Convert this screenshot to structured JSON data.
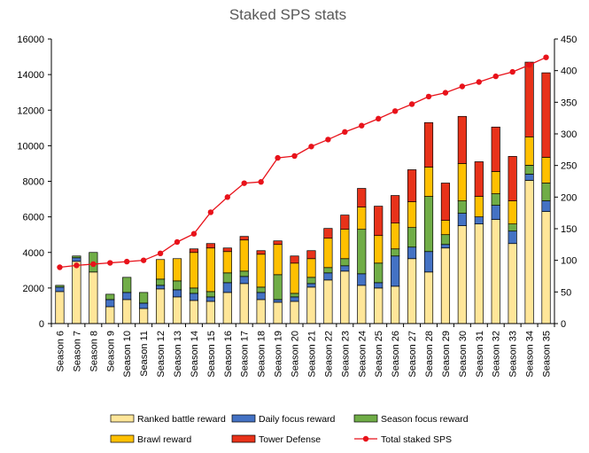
{
  "chart_data": {
    "type": "bar",
    "title": "Staked SPS stats",
    "categories": [
      "Season 6",
      "Season 7",
      "Season 8",
      "Season 9",
      "Season 10",
      "Season 11",
      "Season 12",
      "Season 13",
      "Season 14",
      "Season 15",
      "Season 16",
      "Season 17",
      "Season 18",
      "Season 19",
      "Season 20",
      "Season 21",
      "Season 22",
      "Season 23",
      "Season 24",
      "Season 25",
      "Season 26",
      "Season 27",
      "Season 28",
      "Season 29",
      "Season 30",
      "Season 31",
      "Season 32",
      "Season 33",
      "Season 34",
      "Season 35"
    ],
    "ylim": [
      0,
      16000
    ],
    "y_ticks": [
      0,
      2000,
      4000,
      6000,
      8000,
      10000,
      12000,
      14000,
      16000
    ],
    "y2lim": [
      0,
      450
    ],
    "y2_ticks": [
      0,
      50,
      100,
      150,
      200,
      250,
      300,
      350,
      400,
      450
    ],
    "grid": false,
    "legend_position": "bottom",
    "series": [
      {
        "name": "Ranked battle reward",
        "kind": "bar",
        "axis": "left",
        "color": "#FFE699",
        "values": [
          1800,
          3500,
          2900,
          950,
          1350,
          850,
          1950,
          1500,
          1300,
          1250,
          1750,
          2250,
          1350,
          1200,
          1250,
          2050,
          2450,
          2950,
          2150,
          2000,
          2100,
          3650,
          2900,
          4250,
          5500,
          5600,
          5850,
          4500,
          8050,
          6300
        ]
      },
      {
        "name": "Daily focus reward",
        "kind": "bar",
        "axis": "left",
        "color": "#4472C4",
        "values": [
          250,
          200,
          0,
          400,
          400,
          300,
          200,
          400,
          400,
          250,
          550,
          400,
          400,
          150,
          250,
          200,
          400,
          300,
          650,
          300,
          1700,
          650,
          1150,
          200,
          700,
          400,
          800,
          700,
          350,
          600
        ]
      },
      {
        "name": "Season focus reward",
        "kind": "bar",
        "axis": "left",
        "color": "#70AD47",
        "values": [
          100,
          100,
          1100,
          300,
          850,
          600,
          350,
          500,
          300,
          300,
          550,
          300,
          300,
          1400,
          200,
          350,
          300,
          400,
          2500,
          1100,
          400,
          1100,
          3100,
          550,
          700,
          0,
          650,
          400,
          500,
          1000
        ]
      },
      {
        "name": "Brawl reward",
        "kind": "bar",
        "axis": "left",
        "color": "#FFC000",
        "values": [
          0,
          0,
          0,
          0,
          0,
          0,
          1100,
          1250,
          2000,
          2450,
          1200,
          1750,
          1850,
          1700,
          1700,
          1050,
          1650,
          1650,
          1250,
          1550,
          1450,
          1450,
          1650,
          800,
          2100,
          1150,
          1250,
          1300,
          1600,
          1450
        ]
      },
      {
        "name": "Tower Defense",
        "kind": "bar",
        "axis": "left",
        "color": "#E8321A",
        "values": [
          0,
          0,
          0,
          0,
          0,
          0,
          0,
          0,
          200,
          250,
          200,
          200,
          200,
          200,
          400,
          450,
          550,
          800,
          1050,
          1650,
          1550,
          1800,
          2500,
          2100,
          2650,
          1950,
          2500,
          2500,
          4200,
          4750
        ]
      },
      {
        "name": "Total staked SPS",
        "kind": "line",
        "axis": "right",
        "color": "#E8121A",
        "values": [
          89,
          92,
          94,
          96,
          98,
          100,
          111,
          129,
          142,
          176,
          200,
          222,
          224,
          262,
          265,
          280,
          291,
          303,
          313,
          324,
          336,
          347,
          359,
          365,
          375,
          382,
          391,
          398,
          409,
          421
        ]
      }
    ]
  }
}
